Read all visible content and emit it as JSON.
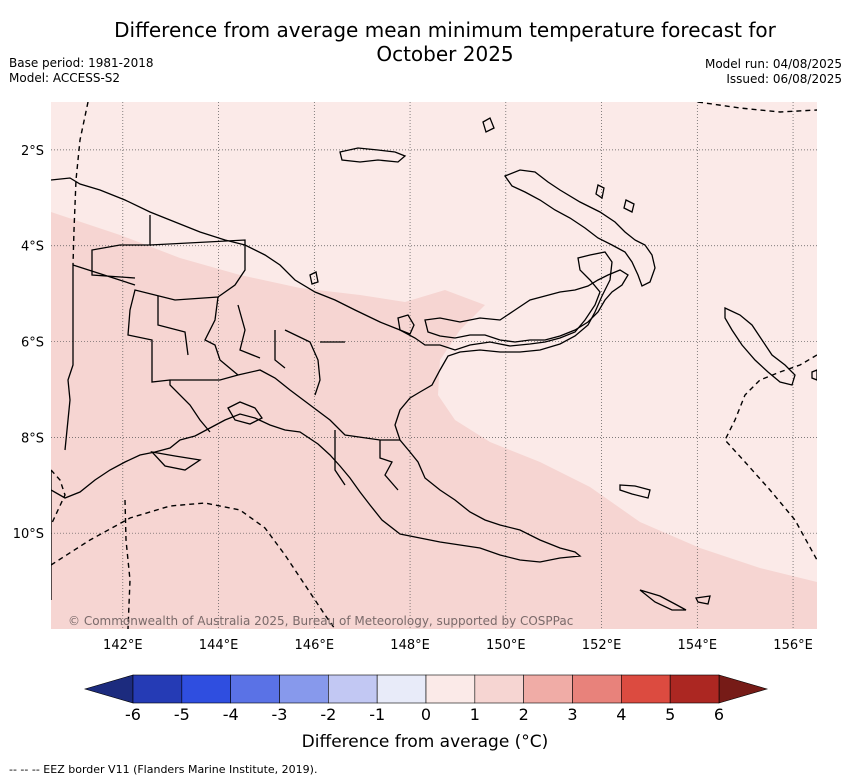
{
  "title": "Difference from average mean minimum temperature forecast for October 2025",
  "title_line1": "Difference from average mean minimum temperature forecast for",
  "title_line2": "October 2025",
  "base_period": "Base period: 1981-2018",
  "model": "Model: ACCESS-S2",
  "model_run": "Model run: 04/08/2025",
  "issued": "Issued: 06/08/2025",
  "copyright": "© Commonwealth of Australia 2025, Bureau of Meteorology, supported by COSPPac",
  "footnote": "--  --  -- EEZ border V11 (Flanders Marine Institute, 2019).",
  "map": {
    "lat_labels": [
      "2°S",
      "4°S",
      "6°S",
      "8°S",
      "10°S"
    ],
    "lat_values": [
      -2,
      -4,
      -6,
      -8,
      -10
    ],
    "lon_labels": [
      "142°E",
      "144°E",
      "146°E",
      "148°E",
      "150°E",
      "152°E",
      "154°E",
      "156°E"
    ],
    "lon_values": [
      142,
      144,
      146,
      148,
      150,
      152,
      154,
      156
    ],
    "lon_range": [
      140.5,
      156.5
    ],
    "lat_range": [
      -12,
      -1
    ],
    "shading": [
      {
        "category": "0 to 1",
        "color": "#fbeae8"
      },
      {
        "category": "1 to 2",
        "color": "#f6d5d2"
      }
    ]
  },
  "colorbar": {
    "title": "Difference from average (°C)",
    "tick_labels": [
      "-6",
      "-5",
      "-4",
      "-3",
      "-2",
      "-1",
      "0",
      "1",
      "2",
      "3",
      "4",
      "5",
      "6"
    ],
    "colors": [
      "#253bb5",
      "#2f4ee0",
      "#5a72e6",
      "#8799ec",
      "#c2c8f3",
      "#e8ebf9",
      "#fbeae8",
      "#f6d5d2",
      "#f0aca6",
      "#e8827b",
      "#dc4b40",
      "#ac2722"
    ],
    "low_extend_color": "#1c2b7e",
    "high_extend_color": "#761b17"
  }
}
